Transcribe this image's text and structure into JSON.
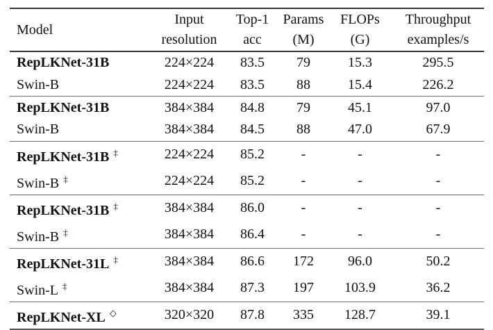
{
  "headers": {
    "model": "Model",
    "resolution": [
      "Input",
      "resolution"
    ],
    "top1": [
      "Top-1",
      "acc"
    ],
    "params": [
      "Params",
      "(M)"
    ],
    "flops": [
      "FLOPs",
      "(G)"
    ],
    "throughput": [
      "Throughput",
      "examples/s"
    ]
  },
  "rows": [
    {
      "model": "RepLKNet-31B",
      "bold": true,
      "mark": "",
      "resolution": "224×224",
      "top1": "83.5",
      "params": "79",
      "flops": "15.3",
      "throughput": "295.5"
    },
    {
      "model": "Swin-B",
      "bold": false,
      "mark": "",
      "resolution": "224×224",
      "top1": "83.5",
      "params": "88",
      "flops": "15.4",
      "throughput": "226.2"
    },
    {
      "model": "RepLKNet-31B",
      "bold": true,
      "mark": "",
      "resolution": "384×384",
      "top1": "84.8",
      "params": "79",
      "flops": "45.1",
      "throughput": "97.0"
    },
    {
      "model": "Swin-B",
      "bold": false,
      "mark": "",
      "resolution": "384×384",
      "top1": "84.5",
      "params": "88",
      "flops": "47.0",
      "throughput": "67.9"
    },
    {
      "model": "RepLKNet-31B",
      "bold": true,
      "mark": "‡",
      "resolution": "224×224",
      "top1": "85.2",
      "params": "-",
      "flops": "-",
      "throughput": "-"
    },
    {
      "model": "Swin-B",
      "bold": false,
      "mark": "‡",
      "resolution": "224×224",
      "top1": "85.2",
      "params": "-",
      "flops": "-",
      "throughput": "-"
    },
    {
      "model": "RepLKNet-31B",
      "bold": true,
      "mark": "‡",
      "resolution": "384×384",
      "top1": "86.0",
      "params": "-",
      "flops": "-",
      "throughput": "-"
    },
    {
      "model": "Swin-B",
      "bold": false,
      "mark": "‡",
      "resolution": "384×384",
      "top1": "86.4",
      "params": "-",
      "flops": "-",
      "throughput": "-"
    },
    {
      "model": "RepLKNet-31L",
      "bold": true,
      "mark": "‡",
      "resolution": "384×384",
      "top1": "86.6",
      "params": "172",
      "flops": "96.0",
      "throughput": "50.2"
    },
    {
      "model": "Swin-L",
      "bold": false,
      "mark": "‡",
      "resolution": "384×384",
      "top1": "87.3",
      "params": "197",
      "flops": "103.9",
      "throughput": "36.2"
    },
    {
      "model": "RepLKNet-XL",
      "bold": true,
      "mark": "◇",
      "resolution": "320×320",
      "top1": "87.8",
      "params": "335",
      "flops": "128.7",
      "throughput": "39.1"
    }
  ]
}
